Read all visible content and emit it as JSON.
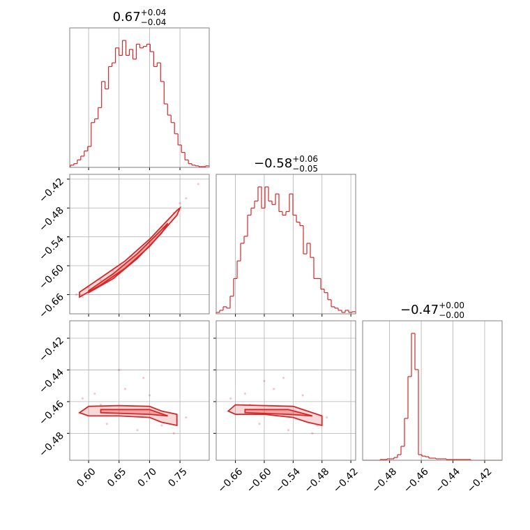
{
  "chart_data": {
    "type": "corner",
    "color": "#d62728",
    "grid": true,
    "titles": [
      {
        "text": "0.67",
        "plus": "+0.04",
        "minus": "−0.04"
      },
      {
        "text": "−0.58",
        "plus": "+0.06",
        "minus": "−0.05"
      },
      {
        "text": "−0.47",
        "plus": "+0.00",
        "minus": "−0.00"
      }
    ],
    "axes": [
      {
        "lim": [
          0.569,
          0.798
        ],
        "ticks": [
          {
            "value": 0.6,
            "label": "0.60"
          },
          {
            "value": 0.65,
            "label": "0.65"
          },
          {
            "value": 0.7,
            "label": "0.70"
          },
          {
            "value": 0.75,
            "label": "0.75"
          }
        ]
      },
      {
        "lim": [
          -0.7,
          -0.41
        ],
        "ticks": [
          {
            "value": -0.66,
            "label": "−0.66"
          },
          {
            "value": -0.6,
            "label": "−0.60"
          },
          {
            "value": -0.54,
            "label": "−0.54"
          },
          {
            "value": -0.48,
            "label": "−0.48"
          },
          {
            "value": -0.42,
            "label": "−0.42"
          }
        ]
      },
      {
        "lim": [
          -0.497,
          -0.409
        ],
        "ticks": [
          {
            "value": -0.48,
            "label": "−0.48"
          },
          {
            "value": -0.46,
            "label": "−0.46"
          },
          {
            "value": -0.44,
            "label": "−0.44"
          },
          {
            "value": -0.42,
            "label": "−0.42"
          }
        ]
      }
    ],
    "histograms": [
      {
        "bins": [
          0.57,
          0.5757,
          0.5814,
          0.5871,
          0.5928,
          0.5985,
          0.6042,
          0.6099,
          0.6156,
          0.6213,
          0.627,
          0.6327,
          0.6384,
          0.6441,
          0.6498,
          0.6555,
          0.6612,
          0.6669,
          0.6726,
          0.6783,
          0.684,
          0.6897,
          0.6954,
          0.7011,
          0.7068,
          0.7125,
          0.7182,
          0.7239,
          0.7296,
          0.7353,
          0.741,
          0.7467,
          0.7524,
          0.7581,
          0.7638,
          0.7695,
          0.7752,
          0.7809,
          0.7866,
          0.7923,
          0.798
        ],
        "counts": [
          3,
          5,
          10,
          15,
          22,
          28,
          60,
          65,
          80,
          115,
          105,
          135,
          140,
          160,
          150,
          170,
          150,
          158,
          145,
          165,
          160,
          162,
          165,
          155,
          135,
          140,
          115,
          85,
          70,
          60,
          45,
          30,
          20,
          10,
          5,
          3,
          2,
          1,
          1,
          2
        ]
      },
      {
        "bins": [
          -0.7,
          -0.69275,
          -0.6855,
          -0.67825,
          -0.671,
          -0.66375,
          -0.6565,
          -0.64925,
          -0.642,
          -0.63475,
          -0.6275,
          -0.62025,
          -0.613,
          -0.60575,
          -0.5985,
          -0.59125,
          -0.584,
          -0.57675,
          -0.5695,
          -0.56225,
          -0.555,
          -0.54775,
          -0.5405,
          -0.53325,
          -0.526,
          -0.51875,
          -0.5115,
          -0.50425,
          -0.497,
          -0.48975,
          -0.4825,
          -0.47525,
          -0.468,
          -0.46075,
          -0.4535,
          -0.44625,
          -0.439,
          -0.43175,
          -0.4245,
          -0.41725,
          -0.41
        ],
        "counts": [
          2,
          5,
          10,
          8,
          25,
          50,
          75,
          100,
          110,
          140,
          150,
          160,
          180,
          150,
          180,
          160,
          155,
          170,
          145,
          140,
          145,
          170,
          140,
          130,
          125,
          85,
          100,
          80,
          50,
          50,
          35,
          30,
          20,
          10,
          8,
          5,
          2,
          5,
          2,
          3
        ]
      },
      {
        "bins": [
          -0.497,
          -0.4948,
          -0.4926,
          -0.4904,
          -0.4882,
          -0.486,
          -0.4838,
          -0.4816,
          -0.4794,
          -0.4772,
          -0.475,
          -0.4728,
          -0.4706,
          -0.4684,
          -0.4662,
          -0.464,
          -0.4618,
          -0.4596,
          -0.4574,
          -0.4552,
          -0.453,
          -0.4508,
          -0.4486,
          -0.4464,
          -0.4442,
          -0.442,
          -0.4398,
          -0.4376,
          -0.4354,
          -0.4332,
          -0.431,
          -0.4288,
          -0.4266,
          -0.4244,
          -0.4222,
          -0.42,
          -0.4178,
          -0.4156,
          -0.4134,
          -0.4112,
          -0.409
        ],
        "counts": [
          0,
          0,
          0,
          0,
          0,
          1,
          1,
          2,
          2,
          4,
          8,
          20,
          60,
          120,
          182,
          130,
          8,
          6,
          5,
          3,
          3,
          2,
          2,
          2,
          1,
          1,
          1,
          1,
          1,
          1,
          1,
          0,
          0,
          0,
          0,
          0,
          0,
          0,
          0,
          0
        ]
      }
    ],
    "pairs": [
      {
        "points": {
          "x": [
            0.58,
            0.6,
            0.62,
            0.64,
            0.67,
            0.7,
            0.72,
            0.74,
            0.76,
            0.78,
            0.59,
            0.75
          ],
          "y": [
            -0.66,
            -0.645,
            -0.63,
            -0.61,
            -0.58,
            -0.55,
            -0.52,
            -0.49,
            -0.46,
            -0.43,
            -0.665,
            -0.47
          ]
        },
        "contours": [
          {
            "x": [
              0.585,
              0.62,
              0.66,
              0.7,
              0.745,
              0.75,
              0.745,
              0.7,
              0.66,
              0.62,
              0.585
            ],
            "y": [
              -0.655,
              -0.625,
              -0.59,
              -0.545,
              -0.485,
              -0.48,
              -0.495,
              -0.56,
              -0.605,
              -0.64,
              -0.665
            ]
          },
          {
            "x": [
              0.6,
              0.64,
              0.68,
              0.72,
              0.73,
              0.72,
              0.68,
              0.64,
              0.6
            ],
            "y": [
              -0.652,
              -0.617,
              -0.575,
              -0.525,
              -0.512,
              -0.532,
              -0.585,
              -0.627,
              -0.656
            ]
          }
        ]
      },
      {
        "points": {
          "x": [
            0.59,
            0.61,
            0.63,
            0.66,
            0.68,
            0.7,
            0.72,
            0.74,
            0.65,
            0.69,
            0.62,
            0.76
          ],
          "y": [
            -0.458,
            -0.455,
            -0.474,
            -0.452,
            -0.478,
            -0.456,
            -0.475,
            -0.48,
            -0.44,
            -0.445,
            -0.462,
            -0.47
          ]
        },
        "contours": [
          {
            "x": [
              0.585,
              0.6,
              0.65,
              0.7,
              0.72,
              0.745,
              0.745,
              0.72,
              0.7,
              0.65,
              0.6
            ],
            "y": [
              -0.467,
              -0.463,
              -0.4625,
              -0.463,
              -0.466,
              -0.468,
              -0.475,
              -0.473,
              -0.47,
              -0.469,
              -0.469
            ]
          },
          {
            "x": [
              0.62,
              0.7,
              0.73,
              0.7,
              0.62
            ],
            "y": [
              -0.465,
              -0.465,
              -0.469,
              -0.468,
              -0.467
            ]
          }
        ]
      },
      {
        "points": {
          "x": [
            -0.67,
            -0.64,
            -0.61,
            -0.58,
            -0.55,
            -0.52,
            -0.49,
            -0.6,
            -0.56,
            -0.63,
            -0.5,
            -0.47
          ],
          "y": [
            -0.458,
            -0.455,
            -0.474,
            -0.452,
            -0.478,
            -0.456,
            -0.475,
            -0.447,
            -0.445,
            -0.462,
            -0.48,
            -0.47
          ]
        },
        "contours": [
          {
            "x": [
              -0.675,
              -0.66,
              -0.6,
              -0.54,
              -0.51,
              -0.48,
              -0.48,
              -0.51,
              -0.54,
              -0.6,
              -0.66
            ],
            "y": [
              -0.466,
              -0.462,
              -0.4625,
              -0.463,
              -0.466,
              -0.469,
              -0.475,
              -0.473,
              -0.47,
              -0.468,
              -0.468
            ]
          },
          {
            "x": [
              -0.64,
              -0.55,
              -0.5,
              -0.55,
              -0.64
            ],
            "y": [
              -0.465,
              -0.465,
              -0.469,
              -0.468,
              -0.467
            ]
          }
        ]
      }
    ]
  }
}
